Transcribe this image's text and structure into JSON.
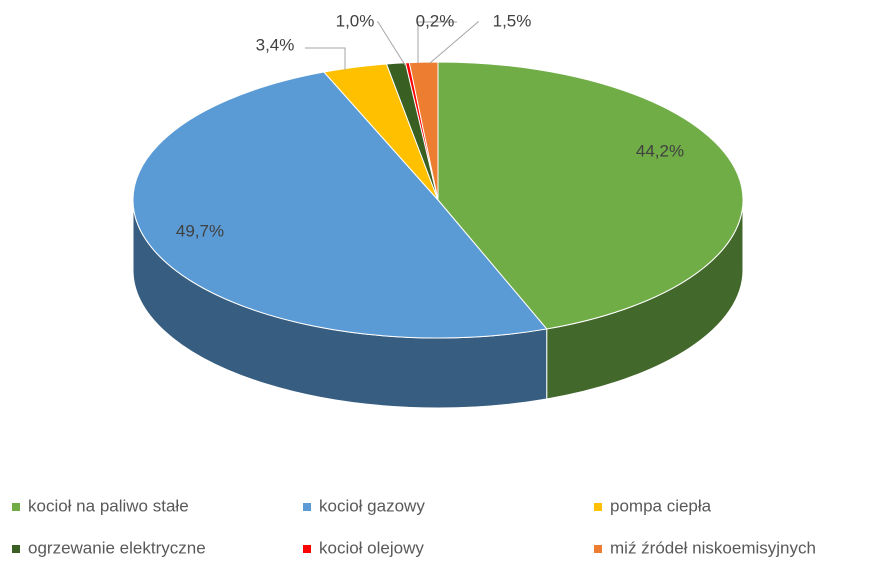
{
  "chart_data": {
    "type": "pie",
    "view": "3d",
    "categories": [
      "kocioł na paliwo stałe",
      "kocioł gazowy",
      "pompa ciepła",
      "ogrzewanie elektryczne",
      "kocioł olejowy",
      "miź źródeł niskoemisyjnych"
    ],
    "values": [
      44.2,
      49.7,
      3.4,
      1.0,
      0.2,
      1.5
    ],
    "value_labels": [
      "44,2%",
      "49,7%",
      "3,4%",
      "1,0%",
      "0,2%",
      "1,5%"
    ],
    "colors": [
      "#70ad47",
      "#5b9bd5",
      "#ffc000",
      "#3a5f23",
      "#ff0000",
      "#ed7d31"
    ],
    "legend": "bottom"
  }
}
